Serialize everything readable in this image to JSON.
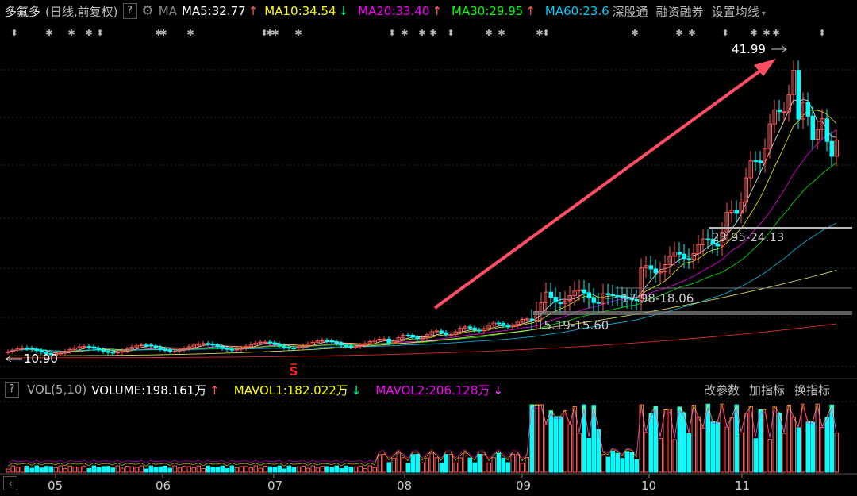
{
  "header": {
    "stock_name": "多氟多",
    "mode": "(日线,前复权)",
    "help": "?",
    "ma_label": "MA",
    "ma5": "MA5:32.77",
    "ma5_arrow": "↑",
    "ma10": "MA10:34.54",
    "ma10_arrow": "↓",
    "ma20": "MA20:33.40",
    "ma20_arrow": "↑",
    "ma30": "MA30:29.95",
    "ma30_arrow": "↑",
    "ma60": "MA60:23.6",
    "tools": [
      "深股通",
      "融资融券",
      "设置均线"
    ]
  },
  "chart": {
    "high_label": "41.99",
    "low_label": "10.90",
    "zones": [
      "23.95-24.13",
      "17.98-18.06",
      "15.19-15.60"
    ],
    "signal_mark": "S"
  },
  "volume": {
    "help": "?",
    "indicator": "VOL(5,10)",
    "volume": "VOLUME:198.161万",
    "volume_arrow": "↑",
    "mavol1": "MAVOL1:182.022万",
    "mavol1_arrow": "↓",
    "mavol2": "MAVOL2:206.128万",
    "mavol2_arrow": "↓",
    "buttons": [
      "改参数",
      "加指标",
      "换指标"
    ]
  },
  "xaxis": {
    "months": [
      "05",
      "06",
      "07",
      "08",
      "09",
      "10",
      "11"
    ]
  },
  "colors": {
    "ma5": "#ffffff",
    "ma10": "#ffff00",
    "ma20": "#ff00ff",
    "ma30": "#00ff00",
    "ma60": "#00ccff",
    "up": "#ff5555",
    "down": "#00ffff",
    "arrow": "#ff4d63"
  }
}
